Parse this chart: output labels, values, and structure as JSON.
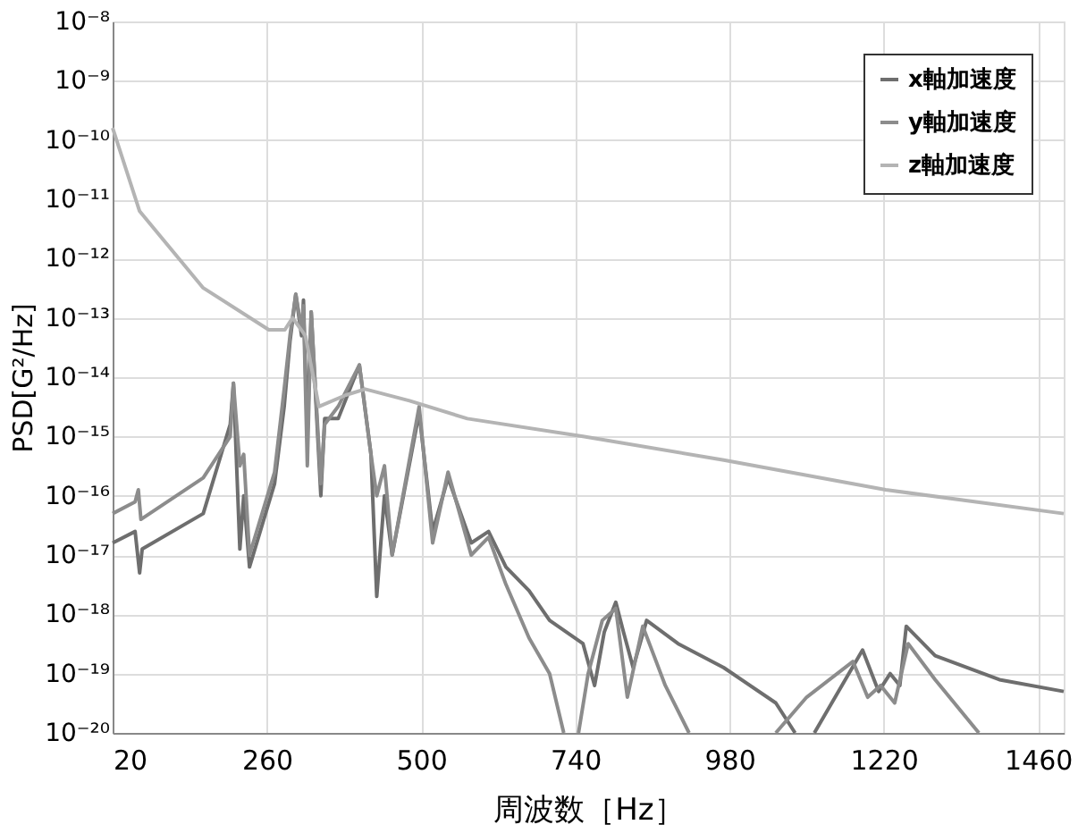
{
  "chart_data": {
    "type": "line",
    "xlabel": "周波数［Hz］",
    "ylabel": "PSD[G²/Hz]",
    "xlim": [
      20,
      1500
    ],
    "xticks": [
      20,
      260,
      500,
      740,
      980,
      1220,
      1460
    ],
    "ylim": [
      1e-20,
      1e-08
    ],
    "log": true,
    "grid": true,
    "legend": "top right",
    "line_style": "solid",
    "marker": "none",
    "yticks": [
      {
        "value": 1e-08,
        "label": "10⁻⁸"
      },
      {
        "value": 1e-09,
        "label": "10⁻⁹"
      },
      {
        "value": 1e-10,
        "label": "10⁻¹⁰"
      },
      {
        "value": 1e-11,
        "label": "10⁻¹¹"
      },
      {
        "value": 1e-12,
        "label": "10⁻¹²"
      },
      {
        "value": 1e-13,
        "label": "10⁻¹³"
      },
      {
        "value": 1e-14,
        "label": "10⁻¹⁴"
      },
      {
        "value": 1e-15,
        "label": "10⁻¹⁵"
      },
      {
        "value": 1e-16,
        "label": "10⁻¹⁶"
      },
      {
        "value": 1e-17,
        "label": "10⁻¹⁷"
      },
      {
        "value": 1e-18,
        "label": "10⁻¹⁸"
      },
      {
        "value": 1e-19,
        "label": "10⁻¹⁹"
      },
      {
        "value": 1e-20,
        "label": "10⁻²⁰"
      }
    ],
    "series": [
      {
        "name": "x軸加速度",
        "color": "#6e6e6e",
        "x": [
          20,
          55,
          62,
          66,
          161,
          203,
          208,
          218,
          224,
          233,
          272,
          287,
          296,
          305,
          314,
          317,
          323,
          329,
          344,
          350,
          371,
          404,
          422,
          431,
          443,
          455,
          497,
          518,
          542,
          578,
          605,
          632,
          668,
          700,
          752,
          770,
          785,
          803,
          815,
          830,
          851,
          900,
          971,
          1052,
          1082,
          1095,
          1112,
          1187,
          1212,
          1230,
          1245,
          1255,
          1300,
          1400,
          1500
        ],
        "values": [
          1.6e-17,
          2.5e-17,
          5e-18,
          1.26e-17,
          5e-17,
          1.6e-15,
          7.9e-15,
          1.26e-17,
          1e-16,
          6.3e-18,
          1.6e-16,
          3.2e-15,
          4e-14,
          2.5e-13,
          5e-14,
          2e-13,
          1e-15,
          1.26e-13,
          1e-16,
          2e-15,
          2e-15,
          1.6e-14,
          5e-16,
          2e-18,
          1e-16,
          1e-17,
          2.5e-15,
          2.5e-17,
          2e-16,
          1.6e-17,
          2.5e-17,
          6.3e-18,
          2.5e-18,
          7.9e-19,
          3.2e-19,
          6.3e-20,
          5e-19,
          1.6e-18,
          5e-19,
          1.26e-19,
          7.9e-19,
          3.2e-19,
          1.26e-19,
          3.2e-20,
          1e-20,
          null,
          1e-20,
          2.5e-19,
          5e-20,
          1e-19,
          6.3e-20,
          6.3e-19,
          2e-19,
          7.9e-20,
          5e-20
        ]
      },
      {
        "name": "y軸加速度",
        "color": "#8c8c8c",
        "x": [
          20,
          55,
          60,
          64,
          161,
          203,
          208,
          218,
          224,
          233,
          272,
          287,
          296,
          305,
          314,
          317,
          323,
          329,
          344,
          350,
          371,
          404,
          422,
          431,
          443,
          455,
          497,
          518,
          542,
          578,
          605,
          632,
          668,
          700,
          722,
          735,
          745,
          760,
          782,
          803,
          821,
          845,
          880,
          917,
          980,
          1052,
          1100,
          1172,
          1195,
          1215,
          1237,
          1258,
          1300,
          1368
        ],
        "values": [
          5e-17,
          7.9e-17,
          1.26e-16,
          4e-17,
          2e-16,
          1e-15,
          7.9e-15,
          3.2e-16,
          5e-16,
          1e-17,
          2.5e-16,
          6.3e-15,
          5e-14,
          2.5e-13,
          6.3e-14,
          1.6e-13,
          3.2e-16,
          1.26e-13,
          1.6e-16,
          1.6e-15,
          3.2e-15,
          1.6e-14,
          5e-16,
          1e-16,
          3.2e-16,
          1e-17,
          3.2e-15,
          1.6e-17,
          2.5e-16,
          1e-17,
          2e-17,
          3.2e-18,
          4e-19,
          1e-19,
          1e-20,
          null,
          1e-20,
          1e-19,
          7.9e-19,
          1.26e-18,
          4e-20,
          6.3e-19,
          6.3e-20,
          1e-20,
          null,
          1e-20,
          4e-20,
          1.6e-19,
          4e-20,
          6.3e-20,
          3.2e-20,
          3.2e-19,
          7.9e-20,
          1e-20
        ]
      },
      {
        "name": "z軸加速度",
        "color": "#b4b4b4",
        "x": [
          20,
          62,
          161,
          263,
          288,
          300,
          320,
          341,
          383,
          413,
          482,
          572,
          752,
          971,
          1223,
          1500
        ],
        "values": [
          1.6e-10,
          6.3e-12,
          3.2e-13,
          6.3e-14,
          6.3e-14,
          1e-13,
          5e-14,
          3.2e-15,
          5e-15,
          6.3e-15,
          4e-15,
          2e-15,
          1e-15,
          4e-16,
          1.26e-16,
          5e-17
        ]
      }
    ]
  }
}
